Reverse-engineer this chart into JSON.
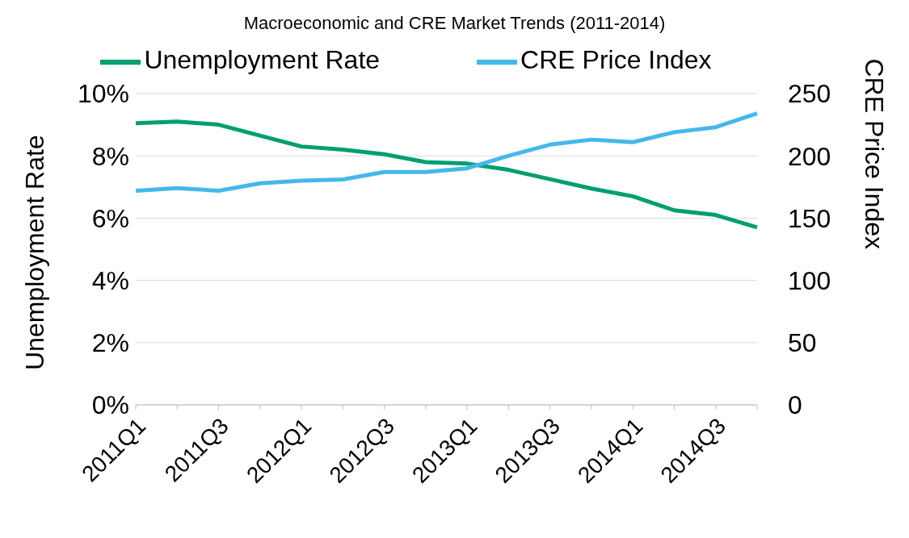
{
  "chart_data": {
    "type": "line",
    "title": "Macroeconomic and CRE Market Trends (2011-2014)",
    "ylabel": "Unemployment Rate",
    "y2label": "CRE Price Index",
    "categories": [
      "2011Q1",
      null,
      "2011Q3",
      null,
      "2012Q1",
      null,
      "2012Q3",
      null,
      "2013Q1",
      null,
      "2013Q3",
      null,
      "2014Q1",
      null,
      "2014Q3",
      null
    ],
    "series": [
      {
        "name": "Unemployment Rate",
        "color": "#009e73",
        "values": [
          9.05,
          9.1,
          9.0,
          8.65,
          8.3,
          8.2,
          8.05,
          7.8,
          7.75,
          7.55,
          7.25,
          6.95,
          6.7,
          6.25,
          6.1,
          5.7
        ]
      },
      {
        "name": "CRE Price Index",
        "color": "#45b8ea",
        "axis": "y2",
        "values": [
          172,
          174,
          172,
          178,
          180,
          181,
          187,
          187,
          190,
          200,
          209,
          213,
          211,
          219,
          223,
          234
        ]
      }
    ],
    "ylim": [
      0,
      10
    ],
    "yticks": [
      {
        "value": 0,
        "label": "0%"
      },
      {
        "value": 2,
        "label": "2%"
      },
      {
        "value": 4,
        "label": "4%"
      },
      {
        "value": 6,
        "label": "6%"
      },
      {
        "value": 8,
        "label": "8%"
      },
      {
        "value": 10,
        "label": "10%"
      }
    ],
    "y2lim": [
      0,
      250
    ],
    "y2ticks": [
      0,
      50,
      100,
      150,
      200,
      250
    ],
    "grid": "y",
    "legend": "top",
    "marker": "none",
    "line_style": "solid"
  }
}
